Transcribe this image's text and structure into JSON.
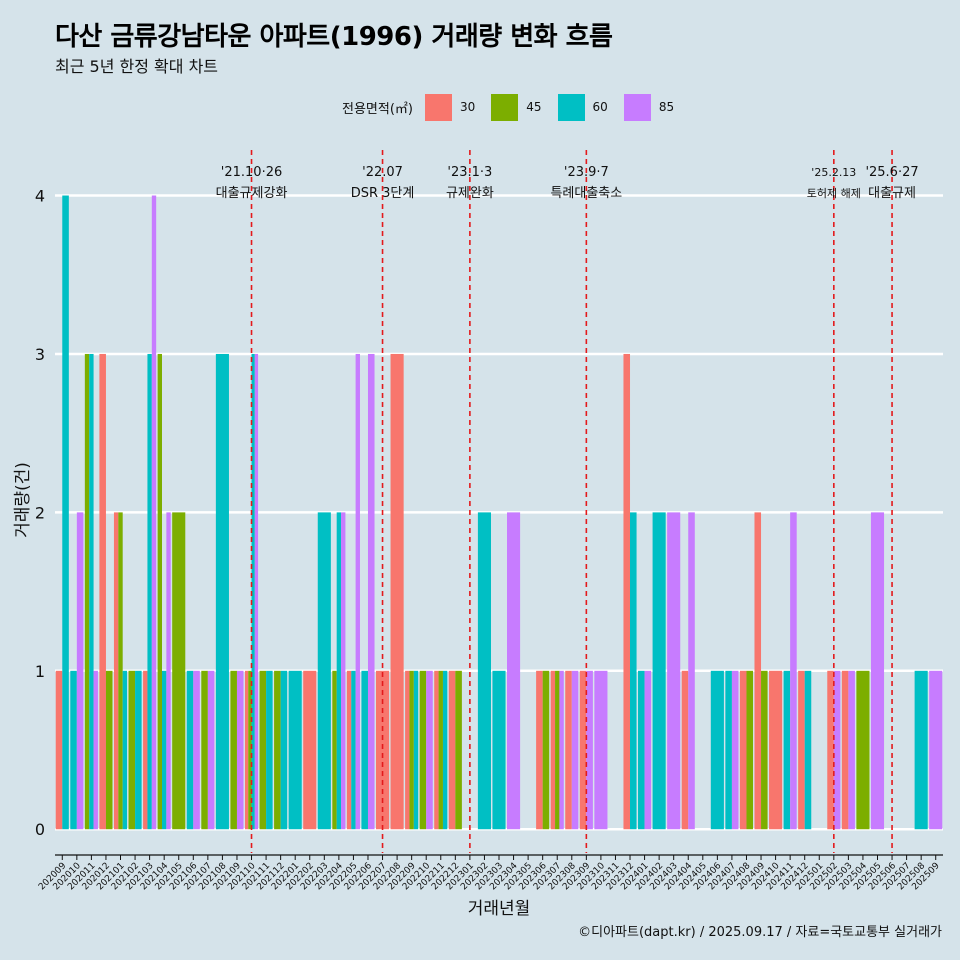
{
  "title": "다산 금류강남타운 아파트(1996) 거래량 변화 흐름",
  "subtitle": "최근 5년 한정 확대 차트",
  "caption": "©디아파트(dapt.kr) / 2025.09.17 / 자료=국토교통부 실거래가",
  "chart_data": {
    "type": "bar",
    "xlabel": "거래년월",
    "ylabel": "거래량(건)",
    "ylim": [
      -0.15,
      4.3
    ],
    "yticks": [
      0,
      1,
      2,
      3,
      4
    ],
    "grid": true,
    "legend_position": "top",
    "legend_title": "전용면적(㎡)",
    "categories": [
      "202009",
      "202010",
      "202011",
      "202012",
      "202101",
      "202102",
      "202103",
      "202104",
      "202105",
      "202106",
      "202107",
      "202108",
      "202109",
      "202110",
      "202111",
      "202112",
      "202201",
      "202202",
      "202203",
      "202204",
      "202205",
      "202206",
      "202207",
      "202208",
      "202209",
      "202210",
      "202211",
      "202212",
      "202301",
      "202302",
      "202303",
      "202304",
      "202305",
      "202306",
      "202307",
      "202308",
      "202309",
      "202310",
      "202311",
      "202312",
      "202401",
      "202402",
      "202403",
      "202404",
      "202405",
      "202406",
      "202407",
      "202408",
      "202409",
      "202410",
      "202411",
      "202412",
      "202501",
      "202502",
      "202503",
      "202504",
      "202505",
      "202506",
      "202507",
      "202508",
      "202509"
    ],
    "series": [
      {
        "name": "30",
        "color": "#F8766D",
        "values": [
          1,
          0,
          0,
          3,
          2,
          0,
          1,
          0,
          0,
          0,
          0,
          0,
          0,
          1,
          0,
          0,
          0,
          1,
          0,
          0,
          1,
          0,
          1,
          3,
          1,
          0,
          1,
          1,
          0,
          0,
          0,
          0,
          0,
          1,
          1,
          1,
          1,
          0,
          0,
          3,
          0,
          0,
          0,
          1,
          0,
          0,
          0,
          1,
          2,
          1,
          0,
          1,
          0,
          1,
          1,
          0,
          0,
          0,
          0,
          0,
          0
        ]
      },
      {
        "name": "45",
        "color": "#7CAE00",
        "values": [
          0,
          0,
          3,
          1,
          2,
          1,
          0,
          3,
          2,
          0,
          1,
          0,
          1,
          1,
          1,
          1,
          0,
          0,
          0,
          1,
          0,
          0,
          0,
          0,
          1,
          1,
          1,
          1,
          0,
          0,
          0,
          0,
          0,
          1,
          1,
          0,
          0,
          0,
          0,
          0,
          0,
          0,
          0,
          0,
          0,
          0,
          0,
          1,
          1,
          0,
          0,
          0,
          0,
          0,
          0,
          1,
          0,
          0,
          0,
          0,
          0
        ]
      },
      {
        "name": "60",
        "color": "#00BFC4",
        "values": [
          4,
          1,
          3,
          0,
          1,
          1,
          3,
          1,
          0,
          1,
          0,
          3,
          0,
          3,
          1,
          1,
          1,
          0,
          2,
          2,
          1,
          1,
          0,
          0,
          1,
          0,
          1,
          0,
          0,
          2,
          1,
          0,
          0,
          0,
          0,
          0,
          0,
          0,
          0,
          2,
          1,
          2,
          0,
          0,
          0,
          1,
          1,
          0,
          0,
          0,
          1,
          1,
          0,
          0,
          0,
          0,
          0,
          0,
          0,
          1,
          0
        ]
      },
      {
        "name": "85",
        "color": "#C77CFF",
        "values": [
          0,
          2,
          1,
          0,
          0,
          0,
          4,
          2,
          0,
          1,
          1,
          0,
          1,
          3,
          0,
          0,
          0,
          0,
          0,
          2,
          3,
          3,
          0,
          0,
          0,
          1,
          0,
          0,
          0,
          0,
          0,
          2,
          0,
          0,
          1,
          1,
          1,
          1,
          0,
          0,
          1,
          0,
          2,
          2,
          0,
          0,
          1,
          0,
          0,
          0,
          2,
          0,
          0,
          1,
          1,
          0,
          2,
          0,
          0,
          0,
          1
        ]
      }
    ],
    "events": [
      {
        "at": "202110",
        "date": "'21.10·26",
        "label": "대출규제강화"
      },
      {
        "at": "202207",
        "date": "'22.07",
        "label": "DSR 3단계"
      },
      {
        "at": "202301",
        "date": "'23.1·3",
        "label": "규제완화"
      },
      {
        "at": "202309",
        "date": "'23.9·7",
        "label": "특례대출축소"
      },
      {
        "at": "202502",
        "date": "'25.2.13",
        "label": "토허제 해제"
      },
      {
        "at": "202506",
        "date": "'25.6·27",
        "label": "대출규제"
      }
    ]
  }
}
